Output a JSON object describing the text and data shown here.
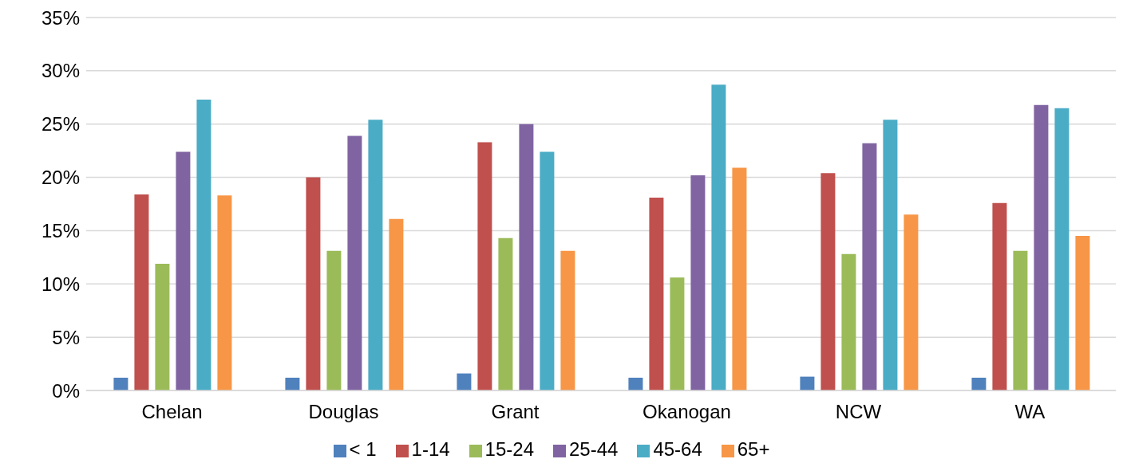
{
  "chart_data": {
    "type": "bar",
    "categories": [
      "Chelan",
      "Douglas",
      "Grant",
      "Okanogan",
      "NCW",
      "WA"
    ],
    "series": [
      {
        "name": "< 1",
        "color": "#4f81bd",
        "values": [
          1.2,
          1.2,
          1.6,
          1.2,
          1.3,
          1.2
        ]
      },
      {
        "name": "1-14",
        "color": "#c0504d",
        "values": [
          18.4,
          20.0,
          23.3,
          18.1,
          20.4,
          17.6
        ]
      },
      {
        "name": "15-24",
        "color": "#9bbb59",
        "values": [
          11.9,
          13.1,
          14.3,
          10.6,
          12.8,
          13.1
        ]
      },
      {
        "name": "25-44",
        "color": "#8064a2",
        "values": [
          22.4,
          23.9,
          25.0,
          20.2,
          23.2,
          26.8
        ]
      },
      {
        "name": "45-64",
        "color": "#4bacc6",
        "values": [
          27.3,
          25.4,
          22.4,
          28.7,
          25.4,
          26.5
        ]
      },
      {
        "name": "65+",
        "color": "#f79646",
        "values": [
          18.3,
          16.1,
          13.1,
          20.9,
          16.5,
          14.5
        ]
      }
    ],
    "ylim": [
      0,
      35
    ],
    "yticks": [
      {
        "value": 0,
        "label": "0%"
      },
      {
        "value": 5,
        "label": "5%"
      },
      {
        "value": 10,
        "label": "10%"
      },
      {
        "value": 15,
        "label": "15%"
      },
      {
        "value": 20,
        "label": "20%"
      },
      {
        "value": 25,
        "label": "25%"
      },
      {
        "value": 30,
        "label": "30%"
      },
      {
        "value": 35,
        "label": "35%"
      }
    ],
    "grid": "y",
    "legend": "bottom"
  }
}
